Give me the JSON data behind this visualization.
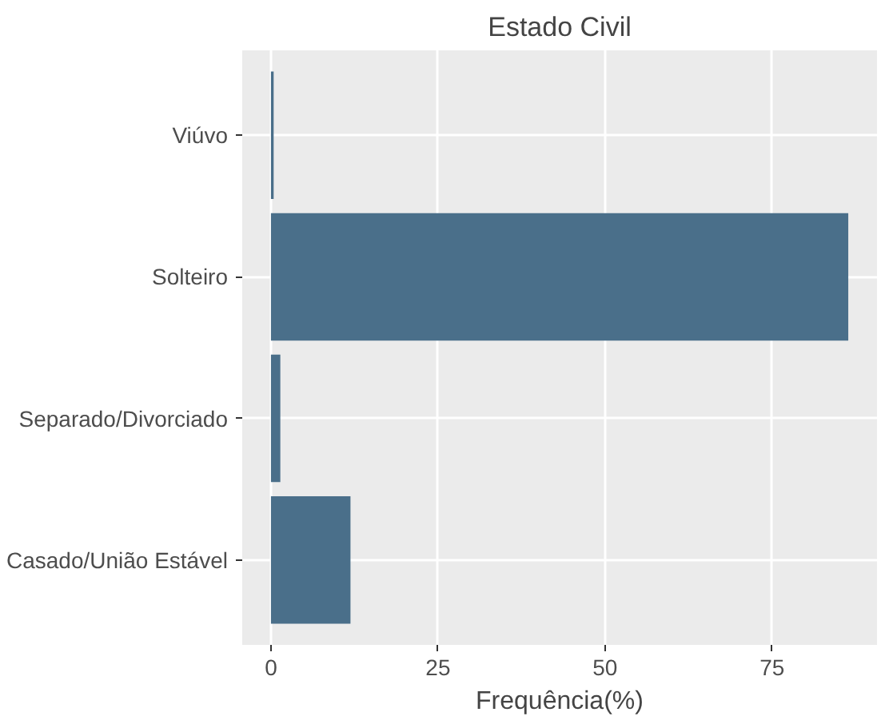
{
  "chart_data": {
    "type": "bar",
    "orientation": "horizontal",
    "title": "Estado Civil",
    "xlabel": "Frequência(%)",
    "categories": [
      "Viúvo",
      "Solteiro",
      "Separado/Divorciado",
      "Casado/União Estável"
    ],
    "values": [
      0.4,
      86.4,
      1.4,
      11.9
    ],
    "color": "#4a6f8a",
    "xlim": [
      -4.3,
      90.7
    ],
    "xticks": [
      0,
      25,
      50,
      75
    ],
    "grid": true
  }
}
